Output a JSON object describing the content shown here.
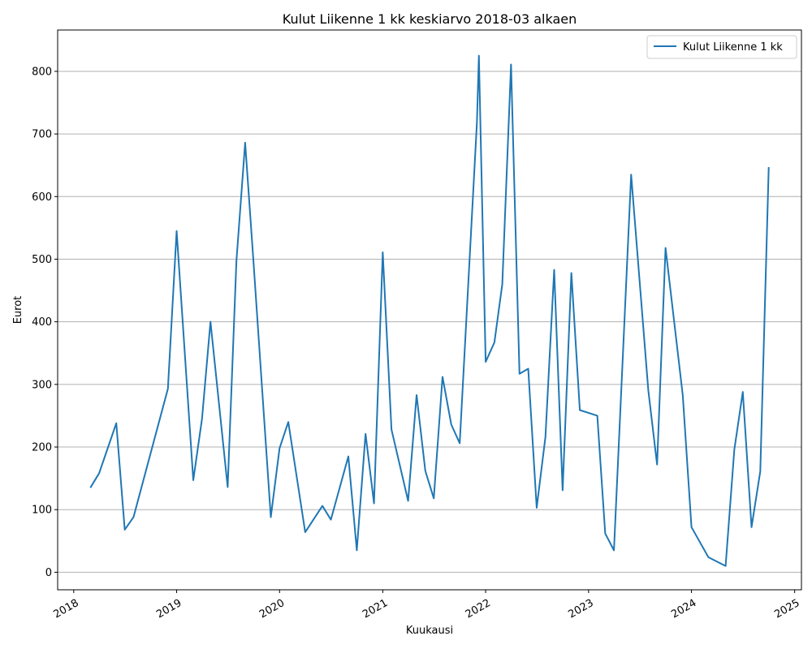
{
  "chart_data": {
    "type": "line",
    "title": "Kulut Liikenne 1 kk keskiarvo 2018-03 alkaen",
    "xlabel": "Kuukausi",
    "ylabel": "Eurot",
    "xlim": [
      "2017-11-05",
      "2025-01-25"
    ],
    "ylim": [
      -28,
      866
    ],
    "x_ticks": [
      "2018",
      "2019",
      "2020",
      "2021",
      "2022",
      "2023",
      "2024",
      "2025"
    ],
    "y_ticks": [
      0,
      100,
      200,
      300,
      400,
      500,
      600,
      700,
      800
    ],
    "grid": "y",
    "legend_position": "top-right",
    "series_color": "#1f77b4",
    "series": [
      {
        "name": "Kulut Liikenne 1 kk",
        "points": [
          [
            "2018-03-01",
            135
          ],
          [
            "2018-04-01",
            158
          ],
          [
            "2018-06-01",
            238
          ],
          [
            "2018-07-01",
            68
          ],
          [
            "2018-08-01",
            88
          ],
          [
            "2018-12-01",
            293
          ],
          [
            "2019-01-01",
            545
          ],
          [
            "2019-03-01",
            147
          ],
          [
            "2019-04-01",
            245
          ],
          [
            "2019-05-01",
            400
          ],
          [
            "2019-07-01",
            136
          ],
          [
            "2019-08-01",
            497
          ],
          [
            "2019-09-01",
            686
          ],
          [
            "2019-10-01",
            493
          ],
          [
            "2019-12-01",
            88
          ],
          [
            "2020-01-01",
            198
          ],
          [
            "2020-02-01",
            240
          ],
          [
            "2020-04-01",
            64
          ],
          [
            "2020-06-01",
            106
          ],
          [
            "2020-07-01",
            84
          ],
          [
            "2020-09-01",
            185
          ],
          [
            "2020-10-01",
            35
          ],
          [
            "2020-11-01",
            221
          ],
          [
            "2020-12-01",
            110
          ],
          [
            "2021-01-01",
            511
          ],
          [
            "2021-02-01",
            228
          ],
          [
            "2021-04-01",
            114
          ],
          [
            "2021-05-01",
            283
          ],
          [
            "2021-06-01",
            162
          ],
          [
            "2021-07-01",
            118
          ],
          [
            "2021-08-01",
            312
          ],
          [
            "2021-09-01",
            236
          ],
          [
            "2021-10-01",
            206
          ],
          [
            "2021-12-01",
            718
          ],
          [
            "2021-12-08",
            825
          ],
          [
            "2022-01-01",
            336
          ],
          [
            "2022-02-01",
            367
          ],
          [
            "2022-03-01",
            460
          ],
          [
            "2022-04-01",
            811
          ],
          [
            "2022-05-01",
            317
          ],
          [
            "2022-06-01",
            325
          ],
          [
            "2022-07-01",
            103
          ],
          [
            "2022-08-01",
            216
          ],
          [
            "2022-09-01",
            483
          ],
          [
            "2022-10-01",
            131
          ],
          [
            "2022-11-01",
            478
          ],
          [
            "2022-12-01",
            259
          ],
          [
            "2023-02-01",
            250
          ],
          [
            "2023-03-01",
            62
          ],
          [
            "2023-04-01",
            35
          ],
          [
            "2023-05-01",
            330
          ],
          [
            "2023-06-01",
            635
          ],
          [
            "2023-08-01",
            290
          ],
          [
            "2023-09-01",
            172
          ],
          [
            "2023-10-01",
            518
          ],
          [
            "2023-12-01",
            283
          ],
          [
            "2024-01-01",
            72
          ],
          [
            "2024-03-01",
            24
          ],
          [
            "2024-05-01",
            10
          ],
          [
            "2024-06-01",
            196
          ],
          [
            "2024-07-01",
            288
          ],
          [
            "2024-08-01",
            72
          ],
          [
            "2024-09-01",
            161
          ],
          [
            "2024-10-01",
            647
          ]
        ]
      }
    ]
  }
}
